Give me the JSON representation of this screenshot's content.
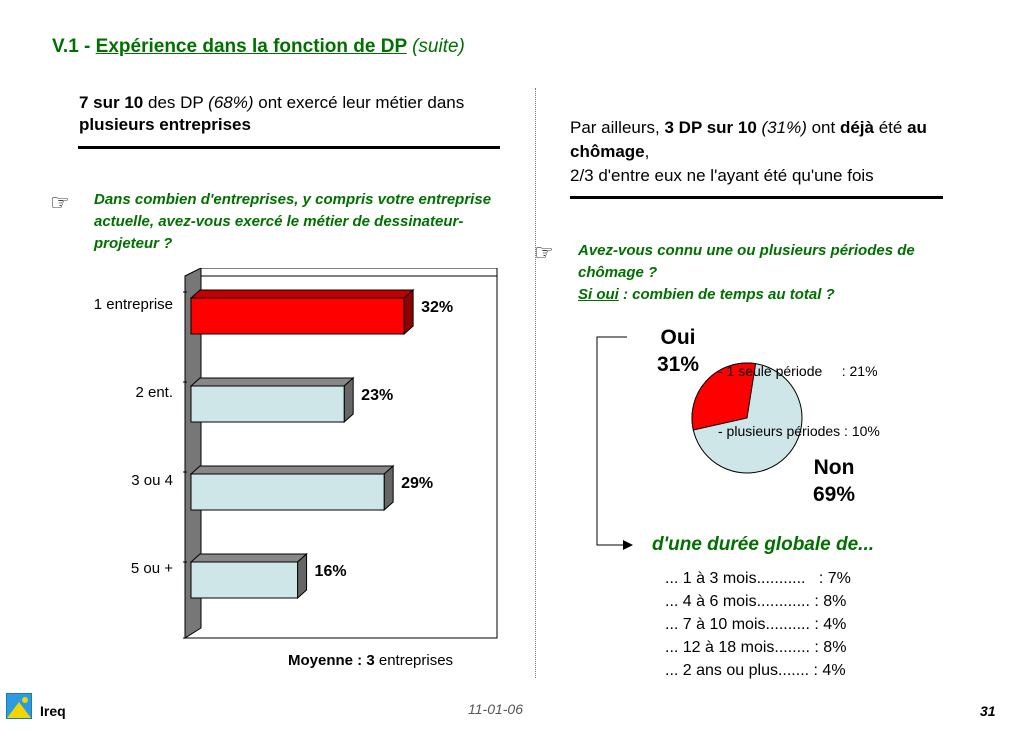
{
  "title": {
    "prefix": "V.1 - ",
    "main": "Expérience dans la fonction de DP",
    "suffix": "(suite)"
  },
  "left_header": {
    "bold1": "7 sur 10",
    "t1": " des DP ",
    "it1": "(68%)",
    "t2": " ont exercé leur métier dans ",
    "bold2": "plusieurs entreprises"
  },
  "left_question": "Dans combien d'entreprises, y compris votre entreprise actuelle, avez-vous exercé le métier de dessinateur-projeteur ?",
  "chart_data": {
    "type": "bar",
    "orientation": "horizontal",
    "categories": [
      "1 entreprise",
      "2 ent.",
      "3 ou 4",
      "5 ou +"
    ],
    "values": [
      32,
      23,
      29,
      16
    ],
    "value_labels": [
      "32%",
      "23%",
      "29%",
      "16%"
    ],
    "highlight_color": "#ff0000",
    "bar_color": "#cfe6e8",
    "xlim": [
      0,
      40
    ]
  },
  "moyenne": {
    "bold": "Moyenne : 3",
    "rest": " entreprises"
  },
  "right_header": {
    "t1": "Par ailleurs, ",
    "b1": "3 DP sur 10",
    "it1": " (31%)",
    "t2": " ont ",
    "b2": "déjà",
    "t3": " été ",
    "b3": "au chômage",
    "t4": ",",
    "line2": "2/3 d'entre eux ne l'ayant été qu'une fois"
  },
  "right_question": {
    "line1": "Avez-vous connu une ou plusieurs périodes de chômage ?",
    "si": "Si oui",
    "line2": " : combien de temps au total ?"
  },
  "pie": {
    "oui_label": "Oui",
    "oui_pct": "31%",
    "non_label": "Non",
    "non_pct": "69%",
    "oui_value": 31,
    "non_value": 69,
    "oui_color": "#ff0000",
    "non_color": "#cfe6e8",
    "detail1": "- 1 seule période     : 21%",
    "detail2": "- plusieurs périodes : 10%"
  },
  "duree": {
    "title": "d'une durée globale de...",
    "rows": [
      "... 1 à 3 mois...........   : 7%",
      "... 4 à 6 mois............ : 8%",
      "... 7 à 10 mois.......... : 4%",
      "... 12 à 18 mois........ : 8%",
      "... 2 ans ou plus....... : 4%"
    ]
  },
  "footer": {
    "brand": "Ireq",
    "date": "11-01-06",
    "page": "31"
  }
}
